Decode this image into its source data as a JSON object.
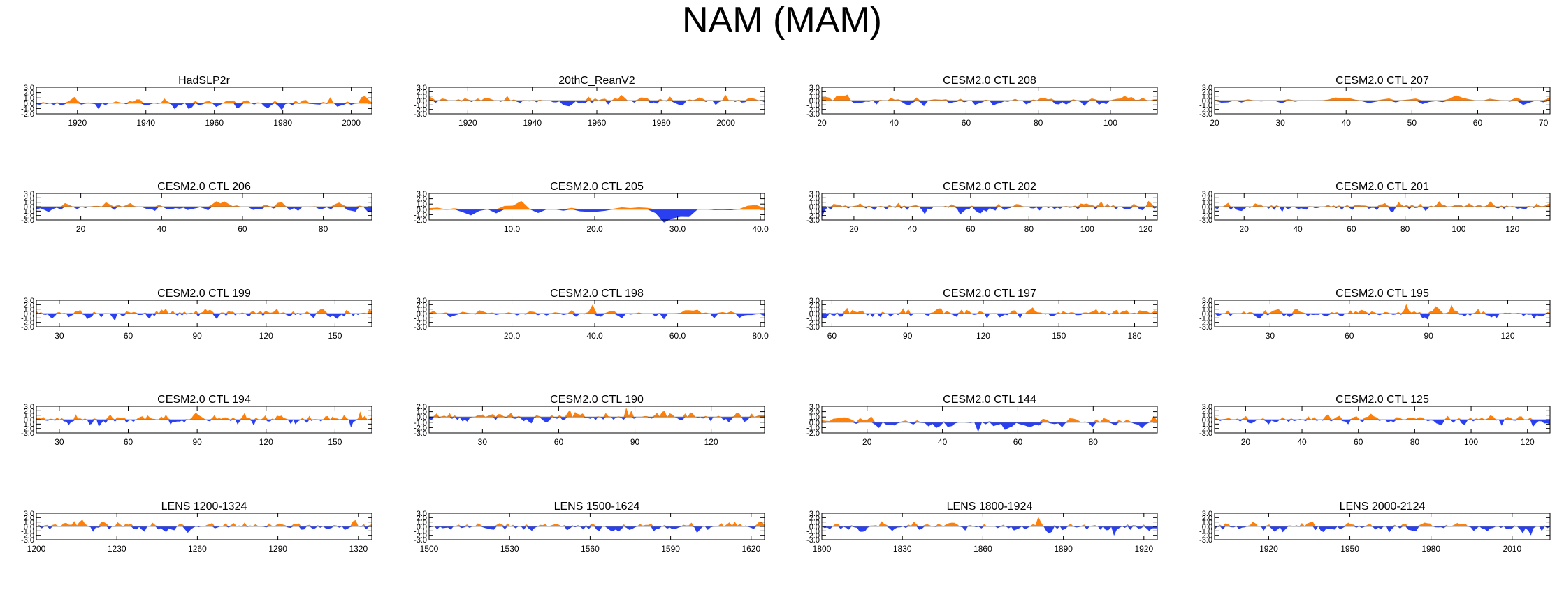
{
  "title": "NAM (MAM)",
  "colors": {
    "positive": "#ff8008",
    "negative": "#2a3ff0",
    "axis": "#000000"
  },
  "chart_data": [
    {
      "type": "area",
      "title": "HadSLP2r",
      "xlim": [
        1908,
        2006
      ],
      "xticks": [
        1920,
        1940,
        1960,
        1980,
        2000
      ],
      "ylim": [
        -2,
        3
      ],
      "yticks": [
        -2,
        -1,
        0,
        1,
        2,
        3
      ],
      "ytick_labels": [
        "-2.0",
        "-1.0",
        "0.0",
        "1.0",
        "2.0",
        "3.0"
      ],
      "seed": 11,
      "amp": 0.95,
      "values": []
    },
    {
      "type": "area",
      "title": "20thC_ReanV2",
      "xlim": [
        1908,
        2012
      ],
      "xticks": [
        1920,
        1940,
        1960,
        1980,
        2000
      ],
      "ylim": [
        -3,
        3
      ],
      "yticks": [
        -3,
        -2,
        -1,
        0,
        1,
        2,
        3
      ],
      "ytick_labels": [
        "-3.0",
        "-2.0",
        "-1.0",
        "0.0",
        "1.0",
        "2.0",
        "3.0"
      ],
      "seed": 23,
      "amp": 0.95,
      "values": []
    },
    {
      "type": "area",
      "title": "CESM2.0 CTL 208",
      "xlim": [
        20,
        113
      ],
      "xticks": [
        20,
        40,
        60,
        80,
        100
      ],
      "ylim": [
        -3,
        3
      ],
      "yticks": [
        -3,
        -2,
        -1,
        0,
        1,
        2,
        3
      ],
      "ytick_labels": [
        "-3.0",
        "-2.0",
        "-1.0",
        "0.0",
        "1.0",
        "2.0",
        "3.0"
      ],
      "seed": 37,
      "amp": 0.9,
      "values": []
    },
    {
      "type": "area",
      "title": "CESM2.0 CTL 207",
      "xlim": [
        20,
        71
      ],
      "xticks": [
        20,
        30,
        40,
        50,
        60,
        70
      ],
      "ylim": [
        -3,
        3
      ],
      "yticks": [
        -3,
        -2,
        -1,
        0,
        1,
        2,
        3
      ],
      "ytick_labels": [
        "-3.0",
        "-2.0",
        "-1.0",
        "0.0",
        "1.0",
        "2.0",
        "3.0"
      ],
      "seed": 41,
      "amp": 0.9,
      "values": []
    },
    {
      "type": "area",
      "title": "CESM2.0 CTL 206",
      "xlim": [
        9,
        92
      ],
      "xticks": [
        20,
        40,
        60,
        80
      ],
      "ylim": [
        -3,
        3
      ],
      "yticks": [
        -3,
        -2,
        -1,
        0,
        1,
        2,
        3
      ],
      "ytick_labels": [
        "-3.0",
        "-2.0",
        "-1.0",
        "0.0",
        "1.0",
        "2.0",
        "3.0"
      ],
      "seed": 53,
      "amp": 0.95,
      "values": []
    },
    {
      "type": "area",
      "title": "CESM2.0 CTL 205",
      "xlim": [
        0,
        40.5
      ],
      "xticks": [
        10,
        20,
        30,
        40
      ],
      "ylim": [
        -2,
        3
      ],
      "yticks": [
        -2,
        -1,
        0,
        1,
        2,
        3
      ],
      "ytick_labels": [
        "-2.0",
        "-1.0",
        "0.0",
        "1.0",
        "2.0",
        "3.0"
      ],
      "xtick_labels": [
        "10.0",
        "20.0",
        "30.0",
        "40.0"
      ],
      "seed": 67,
      "amp": 1.0,
      "values": []
    },
    {
      "type": "area",
      "title": "CESM2.0 CTL 202",
      "xlim": [
        9,
        124
      ],
      "xticks": [
        20,
        40,
        60,
        80,
        100,
        120
      ],
      "ylim": [
        -3,
        3
      ],
      "yticks": [
        -3,
        -2,
        -1,
        0,
        1,
        2,
        3
      ],
      "ytick_labels": [
        "-3.0",
        "-2.0",
        "-1.0",
        "0.0",
        "1.0",
        "2.0",
        "3.0"
      ],
      "seed": 71,
      "amp": 0.95,
      "values": []
    },
    {
      "type": "area",
      "title": "CESM2.0 CTL 201",
      "xlim": [
        9,
        134
      ],
      "xticks": [
        20,
        40,
        60,
        80,
        100,
        120
      ],
      "ylim": [
        -3,
        3
      ],
      "yticks": [
        -3,
        -2,
        -1,
        0,
        1,
        2,
        3
      ],
      "ytick_labels": [
        "-3.0",
        "-2.0",
        "-1.0",
        "0.0",
        "1.0",
        "2.0",
        "3.0"
      ],
      "seed": 83,
      "amp": 0.9,
      "values": []
    },
    {
      "type": "area",
      "title": "CESM2.0 CTL 199",
      "xlim": [
        20,
        166
      ],
      "xticks": [
        30,
        60,
        90,
        120,
        150
      ],
      "ylim": [
        -3,
        3
      ],
      "yticks": [
        -3,
        -2,
        -1,
        0,
        1,
        2,
        3
      ],
      "ytick_labels": [
        "-3.0",
        "-2.0",
        "-1.0",
        "0.0",
        "1.0",
        "2.0",
        "3.0"
      ],
      "seed": 97,
      "amp": 0.95,
      "values": []
    },
    {
      "type": "area",
      "title": "CESM2.0 CTL 198",
      "xlim": [
        0,
        81
      ],
      "xticks": [
        20,
        40,
        60,
        80
      ],
      "ylim": [
        -3,
        3
      ],
      "yticks": [
        -3,
        -2,
        -1,
        0,
        1,
        2,
        3
      ],
      "ytick_labels": [
        "-3.0",
        "-2.0",
        "-1.0",
        "0.0",
        "1.0",
        "2.0",
        "3.0"
      ],
      "xtick_labels": [
        "20.0",
        "40.0",
        "60.0",
        "80.0"
      ],
      "seed": 101,
      "amp": 0.95,
      "values": []
    },
    {
      "type": "area",
      "title": "CESM2.0 CTL 197",
      "xlim": [
        56,
        189
      ],
      "xticks": [
        60,
        90,
        120,
        150,
        180
      ],
      "ylim": [
        -3,
        3
      ],
      "yticks": [
        -3,
        -2,
        -1,
        0,
        1,
        2,
        3
      ],
      "ytick_labels": [
        "-3.0",
        "-2.0",
        "-1.0",
        "0.0",
        "1.0",
        "2.0",
        "3.0"
      ],
      "seed": 113,
      "amp": 0.95,
      "values": []
    },
    {
      "type": "area",
      "title": "CESM2.0 CTL 195",
      "xlim": [
        9,
        136
      ],
      "xticks": [
        30,
        60,
        90,
        120
      ],
      "ylim": [
        -3,
        3
      ],
      "yticks": [
        -3,
        -2,
        -1,
        0,
        1,
        2,
        3
      ],
      "ytick_labels": [
        "-3.0",
        "-2.0",
        "-1.0",
        "0.0",
        "1.0",
        "2.0",
        "3.0"
      ],
      "seed": 127,
      "amp": 0.9,
      "values": []
    },
    {
      "type": "area",
      "title": "CESM2.0 CTL 194",
      "xlim": [
        20,
        166
      ],
      "xticks": [
        30,
        60,
        90,
        120,
        150
      ],
      "ylim": [
        -3,
        3
      ],
      "yticks": [
        -3,
        -2,
        -1,
        0,
        1,
        2,
        3
      ],
      "ytick_labels": [
        "-3.0",
        "-2.0",
        "-1.0",
        "0.0",
        "1.0",
        "2.0",
        "3.0"
      ],
      "seed": 131,
      "amp": 0.95,
      "values": []
    },
    {
      "type": "area",
      "title": "CESM2.0 CTL 190",
      "xlim": [
        9,
        141
      ],
      "xticks": [
        30,
        60,
        90,
        120
      ],
      "ylim": [
        -3,
        2
      ],
      "yticks": [
        -3,
        -2,
        -1,
        0,
        1,
        2
      ],
      "ytick_labels": [
        "-3.0",
        "-2.0",
        "-1.0",
        "0.0",
        "1.0",
        "2.0"
      ],
      "seed": 149,
      "amp": 0.9,
      "values": []
    },
    {
      "type": "area",
      "title": "CESM2.0 CTL 144",
      "xlim": [
        8,
        97
      ],
      "xticks": [
        20,
        40,
        60,
        80
      ],
      "ylim": [
        -2,
        3
      ],
      "yticks": [
        -2,
        -1,
        0,
        1,
        2,
        3
      ],
      "ytick_labels": [
        "-2.0",
        "-1.0",
        "0.0",
        "1.0",
        "2.0",
        "3.0"
      ],
      "seed": 157,
      "amp": 1.0,
      "values": []
    },
    {
      "type": "area",
      "title": "CESM2.0 CTL 125",
      "xlim": [
        9,
        128
      ],
      "xticks": [
        20,
        40,
        60,
        80,
        100,
        120
      ],
      "ylim": [
        -3,
        3
      ],
      "yticks": [
        -3,
        -2,
        -1,
        0,
        1,
        2,
        3
      ],
      "ytick_labels": [
        "-3.0",
        "-2.0",
        "-1.0",
        "0.0",
        "1.0",
        "2.0",
        "3.0"
      ],
      "seed": 163,
      "amp": 0.9,
      "values": []
    },
    {
      "type": "area",
      "title": "LENS 1200-1324",
      "xlim": [
        1200,
        1325
      ],
      "xticks": [
        1200,
        1230,
        1260,
        1290,
        1320
      ],
      "ylim": [
        -3,
        3
      ],
      "yticks": [
        -3,
        -2,
        -1,
        0,
        1,
        2,
        3
      ],
      "ytick_labels": [
        "-3.0",
        "-2.0",
        "-1.0",
        "0.0",
        "1.0",
        "2.0",
        "3.0"
      ],
      "seed": 173,
      "amp": 0.95,
      "values": []
    },
    {
      "type": "area",
      "title": "LENS 1500-1624",
      "xlim": [
        1500,
        1625
      ],
      "xticks": [
        1500,
        1530,
        1560,
        1590,
        1620
      ],
      "ylim": [
        -3,
        3
      ],
      "yticks": [
        -3,
        -2,
        -1,
        0,
        1,
        2,
        3
      ],
      "ytick_labels": [
        "-3.0",
        "-2.0",
        "-1.0",
        "0.0",
        "1.0",
        "2.0",
        "3.0"
      ],
      "seed": 181,
      "amp": 0.95,
      "values": []
    },
    {
      "type": "area",
      "title": "LENS 1800-1924",
      "xlim": [
        1800,
        1925
      ],
      "xticks": [
        1800,
        1830,
        1860,
        1890,
        1920
      ],
      "ylim": [
        -3,
        3
      ],
      "yticks": [
        -3,
        -2,
        -1,
        0,
        1,
        2,
        3
      ],
      "ytick_labels": [
        "-3.0",
        "-2.0",
        "-1.0",
        "0.0",
        "1.0",
        "2.0",
        "3.0"
      ],
      "seed": 191,
      "amp": 0.95,
      "values": []
    },
    {
      "type": "area",
      "title": "LENS 2000-2124",
      "xlim": [
        1900,
        2024
      ],
      "xticks": [
        1920,
        1950,
        1980,
        2010
      ],
      "ylim": [
        -3,
        3
      ],
      "yticks": [
        -3,
        -2,
        -1,
        0,
        1,
        2,
        3
      ],
      "ytick_labels": [
        "-3.0",
        "-2.0",
        "-1.0",
        "0.0",
        "1.0",
        "2.0",
        "3.0"
      ],
      "seed": 197,
      "amp": 0.95,
      "values": []
    }
  ]
}
